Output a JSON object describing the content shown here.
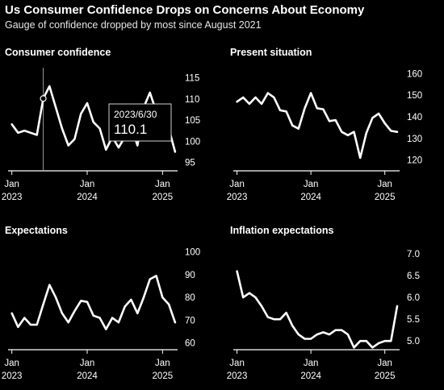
{
  "header": {
    "title": "Us Consumer Confidence Drops on Concerns About Economy",
    "subtitle": "Gauge of confidence dropped by most since August 2021"
  },
  "colors": {
    "background": "#000000",
    "line": "#ffffff",
    "axis": "#ffffff"
  },
  "chart_data": [
    {
      "type": "line",
      "title": "Consumer confidence",
      "xlim": [
        2022.95,
        2025.2
      ],
      "ylim": [
        93,
        117
      ],
      "x_ticks": [
        {
          "x": 2023.0,
          "label": "Jan",
          "sub": "2023"
        },
        {
          "x": 2024.0,
          "label": "Jan",
          "sub": "2024"
        },
        {
          "x": 2025.0,
          "label": "Jan",
          "sub": "2025"
        }
      ],
      "y_ticks": [
        95,
        100,
        105,
        110,
        115
      ],
      "series": [
        {
          "x": [
            2023.0,
            2023.083,
            2023.167,
            2023.25,
            2023.333,
            2023.417,
            2023.5,
            2023.583,
            2023.667,
            2023.75,
            2023.833,
            2023.917,
            2024.0,
            2024.083,
            2024.167,
            2024.25,
            2024.333,
            2024.417,
            2024.5,
            2024.583,
            2024.667,
            2024.75,
            2024.833,
            2024.917,
            2025.0,
            2025.083,
            2025.167
          ],
          "values": [
            104,
            102,
            102.5,
            102,
            101.5,
            110.1,
            113,
            108,
            103,
            99,
            100.5,
            106.5,
            109,
            104.5,
            103,
            98,
            101,
            98.5,
            101,
            103.5,
            99,
            108,
            111.5,
            107,
            106.5,
            103,
            97.5
          ]
        }
      ],
      "annotation": {
        "x": 2023.417,
        "y": 110.1,
        "date": "2023/6/30",
        "value": "110.1"
      }
    },
    {
      "type": "line",
      "title": "Present situation",
      "xlim": [
        2022.95,
        2025.2
      ],
      "ylim": [
        115,
        162
      ],
      "x_ticks": [
        {
          "x": 2023.0,
          "label": "Jan",
          "sub": "2023"
        },
        {
          "x": 2024.0,
          "label": "Jan",
          "sub": "2024"
        },
        {
          "x": 2025.0,
          "label": "Jan",
          "sub": "2025"
        }
      ],
      "y_ticks": [
        120,
        130,
        140,
        150,
        160
      ],
      "series": [
        {
          "x": [
            2023.0,
            2023.083,
            2023.167,
            2023.25,
            2023.333,
            2023.417,
            2023.5,
            2023.583,
            2023.667,
            2023.75,
            2023.833,
            2023.917,
            2024.0,
            2024.083,
            2024.167,
            2024.25,
            2024.333,
            2024.417,
            2024.5,
            2024.583,
            2024.667,
            2024.75,
            2024.833,
            2024.917,
            2025.0,
            2025.083,
            2025.167
          ],
          "values": [
            147,
            149,
            146,
            149,
            146,
            151,
            149,
            143,
            142.5,
            136,
            134.5,
            144,
            151,
            144,
            143.5,
            138,
            138.5,
            133,
            131.5,
            133,
            121,
            132.5,
            139.5,
            141.5,
            137,
            133.5,
            133
          ]
        }
      ]
    },
    {
      "type": "line",
      "title": "Expectations",
      "xlim": [
        2022.95,
        2025.2
      ],
      "ylim": [
        57,
        102
      ],
      "x_ticks": [
        {
          "x": 2023.0,
          "label": "Jan",
          "sub": "2023"
        },
        {
          "x": 2024.0,
          "label": "Jan",
          "sub": "2024"
        },
        {
          "x": 2025.0,
          "label": "Jan",
          "sub": "2025"
        }
      ],
      "y_ticks": [
        60,
        70,
        80,
        90,
        100
      ],
      "series": [
        {
          "x": [
            2023.0,
            2023.083,
            2023.167,
            2023.25,
            2023.333,
            2023.417,
            2023.5,
            2023.583,
            2023.667,
            2023.75,
            2023.833,
            2023.917,
            2024.0,
            2024.083,
            2024.167,
            2024.25,
            2024.333,
            2024.417,
            2024.5,
            2024.583,
            2024.667,
            2024.75,
            2024.833,
            2024.917,
            2025.0,
            2025.083,
            2025.167
          ],
          "values": [
            73,
            67,
            71,
            68,
            68,
            77,
            85.5,
            80,
            73,
            69,
            74,
            78.5,
            78,
            72,
            71,
            66,
            71,
            69,
            76,
            79,
            73,
            80,
            88,
            89.5,
            80,
            77,
            69
          ]
        }
      ]
    },
    {
      "type": "line",
      "title": "Inflation expectations",
      "xlim": [
        2022.95,
        2025.2
      ],
      "ylim": [
        4.8,
        7.15
      ],
      "x_ticks": [
        {
          "x": 2023.0,
          "label": "Jan",
          "sub": "2023"
        },
        {
          "x": 2024.0,
          "label": "Jan",
          "sub": "2024"
        },
        {
          "x": 2025.0,
          "label": "Jan",
          "sub": "2025"
        }
      ],
      "y_ticks": [
        5.0,
        5.5,
        6.0,
        6.5,
        7.0
      ],
      "series": [
        {
          "x": [
            2023.0,
            2023.083,
            2023.167,
            2023.25,
            2023.333,
            2023.417,
            2023.5,
            2023.583,
            2023.667,
            2023.75,
            2023.833,
            2023.917,
            2024.0,
            2024.083,
            2024.167,
            2024.25,
            2024.333,
            2024.417,
            2024.5,
            2024.583,
            2024.667,
            2024.75,
            2024.833,
            2024.917,
            2025.0,
            2025.083,
            2025.167
          ],
          "values": [
            6.6,
            6.0,
            6.1,
            6.0,
            5.8,
            5.55,
            5.5,
            5.5,
            5.65,
            5.35,
            5.15,
            5.05,
            5.05,
            5.15,
            5.2,
            5.15,
            5.25,
            5.25,
            5.15,
            4.85,
            5.0,
            5.0,
            4.85,
            4.95,
            5.0,
            5.0,
            5.8
          ]
        }
      ]
    }
  ]
}
